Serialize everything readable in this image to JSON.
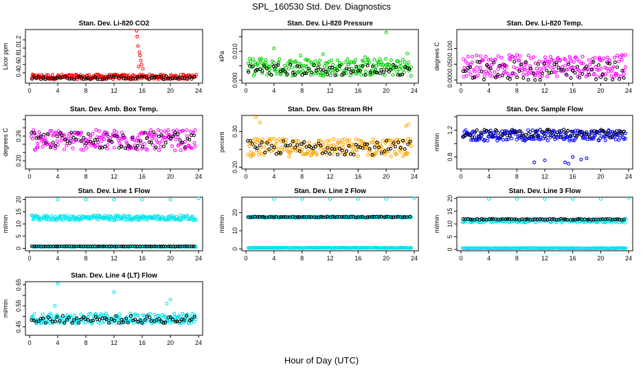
{
  "figure": {
    "title": "SPL_160530  Std. Dev. Diagnostics",
    "x_caption": "Hour of Day (UTC)"
  },
  "chart_data": [
    {
      "type": "scatter",
      "title": "Stan. Dev. Li-820 CO2",
      "ylabel": "Licor ppm",
      "xlim": [
        0,
        24
      ],
      "ylim": [
        0.15,
        1.45
      ],
      "xticks": [
        0,
        4,
        8,
        12,
        16,
        20,
        24
      ],
      "yticks": [
        0.4,
        0.6,
        0.8,
        1.0,
        1.2
      ],
      "ytick_labels": [
        "0.4",
        "0.6",
        "0.8",
        "1.0",
        "1.2"
      ],
      "series": [
        {
          "color": "#ff0000",
          "base": 0.3,
          "spread": 0.06,
          "extra": [
            [
              15.2,
              1.42
            ],
            [
              15.3,
              1.28
            ],
            [
              15.4,
              1.05
            ],
            [
              15.6,
              0.9
            ],
            [
              15.8,
              0.7
            ],
            [
              15.9,
              0.6
            ],
            [
              15.5,
              0.55
            ],
            [
              16.1,
              0.5
            ],
            [
              15.7,
              0.82
            ]
          ]
        },
        {
          "color": "#000000",
          "base": 0.28,
          "spread": 0.04
        }
      ]
    },
    {
      "type": "scatter",
      "title": "Stan. Dev. Li-820 Pressure",
      "ylabel": "kPa",
      "xlim": [
        0,
        24
      ],
      "ylim": [
        -0.001,
        0.0175
      ],
      "xticks": [
        0,
        4,
        8,
        12,
        16,
        20,
        24
      ],
      "yticks": [
        0,
        0.005,
        0.01,
        0.015
      ],
      "ytick_labels": [
        "0.000",
        "",
        "0.010",
        ""
      ],
      "series": [
        {
          "color": "#00cc00",
          "base": 0.0045,
          "spread": 0.003,
          "extra": [
            [
              4,
              0.011
            ],
            [
              20,
              0.0165
            ],
            [
              7.8,
              0.0085
            ],
            [
              11,
              0.009
            ],
            [
              17,
              0.008
            ],
            [
              23,
              0.0092
            ],
            [
              2.2,
              0.0075
            ]
          ]
        },
        {
          "color": "#000000",
          "base": 0.0035,
          "spread": 0.002
        }
      ]
    },
    {
      "type": "scatter",
      "title": "Stan. Dev. Li-820 Temp.",
      "ylabel": "degrees C",
      "xlim": [
        0,
        24
      ],
      "ylim": [
        -0.01,
        0.16
      ],
      "xticks": [
        0,
        4,
        8,
        12,
        16,
        20,
        24
      ],
      "yticks": [
        0,
        0.05,
        0.1
      ],
      "ytick_labels": [
        "0.000",
        "0.050",
        "0.100"
      ],
      "series": [
        {
          "color": "#ff00ff",
          "base": 0.045,
          "spread": 0.035
        },
        {
          "color": "#000000",
          "base": 0.03,
          "spread": 0.03
        }
      ]
    },
    {
      "type": "scatter",
      "title": "Stan. Dev. Amb. Box Temp.",
      "ylabel": "degrees C",
      "xlim": [
        0,
        24
      ],
      "ylim": [
        0.18,
        0.31
      ],
      "xticks": [
        0,
        4,
        8,
        12,
        16,
        20,
        24
      ],
      "yticks": [
        0.2,
        0.22,
        0.24,
        0.26,
        0.28,
        0.3
      ],
      "ytick_labels": [
        "0.20",
        "",
        "",
        "0.26",
        "",
        ""
      ],
      "series": [
        {
          "color": "#ff00ff",
          "base": 0.25,
          "spread": 0.025
        },
        {
          "color": "#000000",
          "base": 0.25,
          "spread": 0.02
        }
      ]
    },
    {
      "type": "scatter",
      "title": "Stan. Dev. Gas Stream RH",
      "ylabel": "percent",
      "xlim": [
        0,
        24
      ],
      "ylim": [
        0.195,
        0.345
      ],
      "xticks": [
        0,
        4,
        8,
        12,
        16,
        20,
        24
      ],
      "yticks": [
        0.2,
        0.25,
        0.3
      ],
      "ytick_labels": [
        "0.20",
        "",
        "0.30"
      ],
      "series": [
        {
          "color": "#ffa500",
          "base": 0.255,
          "spread": 0.025,
          "extra": [
            [
              1.4,
              0.34
            ],
            [
              2.0,
              0.325
            ],
            [
              23.2,
              0.32
            ],
            [
              22.8,
              0.315
            ]
          ]
        },
        {
          "color": "#000000",
          "base": 0.255,
          "spread": 0.02
        }
      ]
    },
    {
      "type": "scatter",
      "title": "Stan. Dev. Sample Flow",
      "ylabel": "ml/min",
      "xlim": [
        0,
        24
      ],
      "ylim": [
        0.62,
        1.42
      ],
      "xticks": [
        0,
        4,
        8,
        12,
        16,
        20,
        24
      ],
      "yticks": [
        0.8,
        1.0,
        1.2,
        1.4
      ],
      "ytick_labels": [
        "0.8",
        "",
        "1.2",
        ""
      ],
      "series": [
        {
          "color": "#0000ff",
          "base": 1.12,
          "spread": 0.08,
          "extra": [
            [
              10.5,
              0.72
            ],
            [
              14.9,
              0.72
            ],
            [
              15.4,
              0.7
            ],
            [
              17.2,
              0.76
            ],
            [
              18.0,
              0.78
            ],
            [
              16.0,
              0.8
            ],
            [
              12.0,
              0.75
            ]
          ]
        },
        {
          "color": "#000000",
          "base": 1.15,
          "spread": 0.06
        }
      ]
    },
    {
      "type": "scatter",
      "title": "Stan. Dev. Line 1 Flow",
      "ylabel": "ml/min",
      "xlim": [
        0,
        24
      ],
      "ylim": [
        -1,
        21
      ],
      "xticks": [
        0,
        4,
        8,
        12,
        16,
        20,
        24
      ],
      "yticks": [
        0,
        5,
        10,
        15,
        20
      ],
      "ytick_labels": [
        "0",
        "5",
        "10",
        "15",
        "20"
      ],
      "series": [
        {
          "color": "#00e5ee",
          "base": 12.5,
          "spread": 1.0,
          "extra": [
            [
              4,
              20
            ],
            [
              8,
              20
            ],
            [
              12,
              20
            ],
            [
              16,
              20
            ],
            [
              20,
              20
            ],
            [
              24,
              20.5
            ]
          ]
        },
        {
          "color": "#00e5ee",
          "base": 0.7,
          "spread": 0.15
        },
        {
          "color": "#000000",
          "base": 0.8,
          "spread": 0.05
        }
      ]
    },
    {
      "type": "scatter",
      "title": "Stan. Dev. Line 2 Flow",
      "ylabel": "ml/min",
      "xlim": [
        0,
        24
      ],
      "ylim": [
        -1,
        28.5
      ],
      "xticks": [
        0,
        4,
        8,
        12,
        16,
        20,
        24
      ],
      "yticks": [
        0,
        10,
        20
      ],
      "ytick_labels": [
        "0",
        "10",
        "20"
      ],
      "series": [
        {
          "color": "#00e5ee",
          "base": 17.5,
          "spread": 0.4,
          "extra": [
            [
              4,
              27.5
            ],
            [
              8,
              27.5
            ],
            [
              12,
              27.5
            ],
            [
              16,
              27.5
            ],
            [
              20,
              27.5
            ],
            [
              24,
              28
            ]
          ]
        },
        {
          "color": "#00e5ee",
          "base": 0.6,
          "spread": 0.15
        },
        {
          "color": "#000000",
          "base": 17.6,
          "spread": 0.25
        }
      ]
    },
    {
      "type": "scatter",
      "title": "Stan. Dev. Line 3 Flow",
      "ylabel": "ml/min",
      "xlim": [
        0,
        24
      ],
      "ylim": [
        -0.5,
        20.5
      ],
      "xticks": [
        0,
        4,
        8,
        12,
        16,
        20,
        24
      ],
      "yticks": [
        0,
        5,
        10,
        15,
        20
      ],
      "ytick_labels": [
        "0",
        "5",
        "10",
        "15",
        "20"
      ],
      "series": [
        {
          "color": "#00e5ee",
          "base": 11.3,
          "spread": 0.8,
          "extra": [
            [
              4,
              19.8
            ],
            [
              8,
              19.8
            ],
            [
              12,
              19.8
            ],
            [
              16,
              19.8
            ],
            [
              20,
              19.8
            ],
            [
              24,
              20.2
            ]
          ]
        },
        {
          "color": "#00e5ee",
          "base": 0.5,
          "spread": 0.1
        },
        {
          "color": "#000000",
          "base": 11.8,
          "spread": 0.25
        }
      ]
    },
    {
      "type": "scatter",
      "title": "Stan. Dev. Line 4 (LT) Flow",
      "ylabel": "ml/min",
      "xlim": [
        0,
        24
      ],
      "ylim": [
        0.41,
        0.665
      ],
      "xticks": [
        0,
        4,
        8,
        12,
        16,
        20,
        24
      ],
      "yticks": [
        0.45,
        0.5,
        0.55,
        0.6,
        0.65
      ],
      "ytick_labels": [
        "0.45",
        "",
        "0.55",
        "",
        "0.65"
      ],
      "series": [
        {
          "color": "#00e5ee",
          "base": 0.49,
          "spread": 0.025,
          "extra": [
            [
              4,
              0.655
            ],
            [
              12,
              0.615
            ],
            [
              20,
              0.58
            ],
            [
              19.5,
              0.56
            ],
            [
              3.6,
              0.55
            ]
          ]
        },
        {
          "color": "#000000",
          "base": 0.485,
          "spread": 0.018
        }
      ]
    }
  ]
}
